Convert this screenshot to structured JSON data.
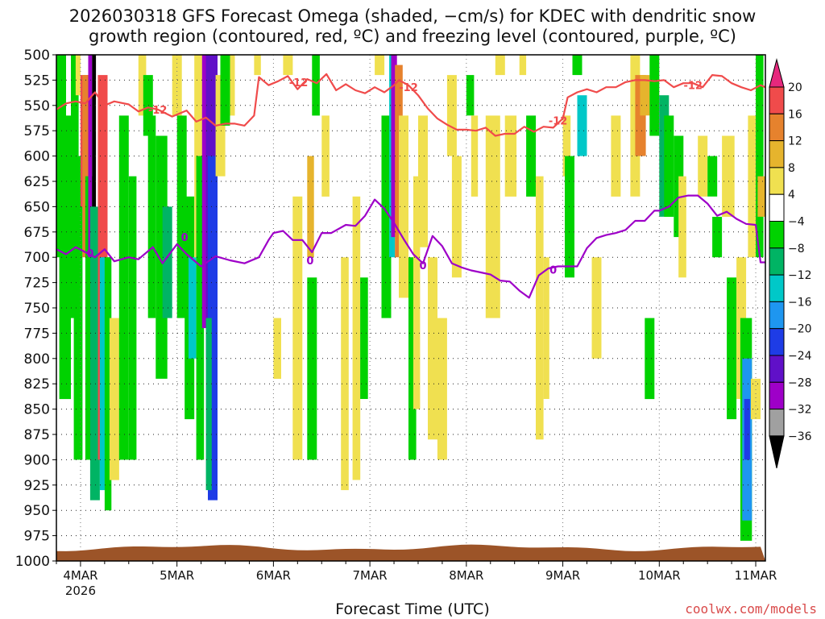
{
  "chart_data": {
    "type": "heatmap",
    "title_lines": [
      "2026030318 GFS Forecast Omega (shaded, −cm/s) for KDEC with dendritic snow",
      "growth region (contoured, red, ºC) and freezing level (contoured, purple, ºC)"
    ],
    "xlabel": "Forecast Time (UTC)",
    "ylabel": "",
    "credit": "coolwx.com/models",
    "x_ticks": [
      "4MAR",
      "5MAR",
      "6MAR",
      "7MAR",
      "8MAR",
      "9MAR",
      "10MAR",
      "11MAR"
    ],
    "x_year_label": "2026",
    "x_range_days": [
      3.75,
      11.1
    ],
    "y_ticks": [
      500,
      525,
      550,
      575,
      600,
      625,
      650,
      675,
      700,
      725,
      750,
      775,
      800,
      825,
      850,
      875,
      900,
      925,
      950,
      975,
      1000
    ],
    "y_range_hpa": [
      500,
      1000
    ],
    "colorbar": {
      "levels": [
        -36,
        -32,
        -28,
        -24,
        -20,
        -16,
        -12,
        -8,
        -4,
        4,
        8,
        12,
        16,
        20
      ],
      "colors": [
        "#000000",
        "#a0a0a0",
        "#9e00c8",
        "#6010c8",
        "#1e3ce6",
        "#1e96f0",
        "#00c8c8",
        "#00b464",
        "#00d200",
        "#ffffff",
        "#f0e050",
        "#e6b42d",
        "#e6822d",
        "#f04b4b",
        "#e6287d"
      ]
    },
    "freezing_level": {
      "name": "0",
      "color": "#9e00c8",
      "points": [
        [
          3.75,
          692
        ],
        [
          3.85,
          697
        ],
        [
          3.95,
          690
        ],
        [
          4.05,
          695
        ],
        [
          4.15,
          700
        ],
        [
          4.25,
          692
        ],
        [
          4.35,
          704
        ],
        [
          4.5,
          700
        ],
        [
          4.6,
          702
        ],
        [
          4.75,
          690
        ],
        [
          4.85,
          706
        ],
        [
          5.0,
          687
        ],
        [
          5.1,
          697
        ],
        [
          5.25,
          709
        ],
        [
          5.4,
          699
        ],
        [
          5.55,
          703
        ],
        [
          5.7,
          706
        ],
        [
          5.85,
          700
        ],
        [
          5.95,
          683
        ],
        [
          6.0,
          676
        ],
        [
          6.1,
          674
        ],
        [
          6.2,
          683
        ],
        [
          6.3,
          683
        ],
        [
          6.4,
          695
        ],
        [
          6.5,
          676
        ],
        [
          6.6,
          676
        ],
        [
          6.75,
          668
        ],
        [
          6.85,
          669
        ],
        [
          6.95,
          659
        ],
        [
          7.05,
          643
        ],
        [
          7.15,
          652
        ],
        [
          7.25,
          666
        ],
        [
          7.35,
          682
        ],
        [
          7.45,
          697
        ],
        [
          7.55,
          706
        ],
        [
          7.65,
          679
        ],
        [
          7.75,
          689
        ],
        [
          7.85,
          706
        ],
        [
          7.95,
          710
        ],
        [
          8.05,
          713
        ],
        [
          8.15,
          715
        ],
        [
          8.25,
          717
        ],
        [
          8.35,
          723
        ],
        [
          8.45,
          724
        ],
        [
          8.55,
          733
        ],
        [
          8.65,
          740
        ],
        [
          8.75,
          718
        ],
        [
          8.85,
          711
        ],
        [
          8.95,
          709
        ],
        [
          9.05,
          709
        ],
        [
          9.15,
          709
        ],
        [
          9.25,
          691
        ],
        [
          9.35,
          681
        ],
        [
          9.45,
          678
        ],
        [
          9.55,
          676
        ],
        [
          9.65,
          673
        ],
        [
          9.75,
          664
        ],
        [
          9.85,
          664
        ],
        [
          9.95,
          654
        ],
        [
          10.0,
          654
        ],
        [
          10.1,
          650
        ],
        [
          10.2,
          641
        ],
        [
          10.3,
          639
        ],
        [
          10.4,
          639
        ],
        [
          10.5,
          647
        ],
        [
          10.6,
          659
        ],
        [
          10.7,
          655
        ],
        [
          10.8,
          662
        ],
        [
          10.9,
          667
        ],
        [
          11.0,
          668
        ],
        [
          11.05,
          705
        ],
        [
          11.1,
          705
        ]
      ],
      "labels": [
        [
          4.1,
          696
        ],
        [
          5.08,
          680
        ],
        [
          6.38,
          703
        ],
        [
          7.55,
          708
        ],
        [
          8.9,
          712
        ]
      ]
    },
    "dgz_minus12": {
      "name": "-12",
      "color": "#f04b4b",
      "points": [
        [
          3.75,
          554
        ],
        [
          3.85,
          548
        ],
        [
          3.95,
          546
        ],
        [
          4.05,
          548
        ],
        [
          4.15,
          537
        ],
        [
          4.25,
          550
        ],
        [
          4.35,
          546
        ],
        [
          4.5,
          549
        ],
        [
          4.6,
          556
        ],
        [
          4.7,
          552
        ],
        [
          4.8,
          554
        ],
        [
          4.95,
          561
        ],
        [
          5.1,
          555
        ],
        [
          5.2,
          566
        ],
        [
          5.3,
          562
        ],
        [
          5.4,
          570
        ],
        [
          5.5,
          568
        ],
        [
          5.6,
          568
        ],
        [
          5.7,
          570
        ],
        [
          5.8,
          560
        ],
        [
          5.85,
          522
        ],
        [
          5.95,
          530
        ],
        [
          6.05,
          526
        ],
        [
          6.15,
          521
        ],
        [
          6.25,
          534
        ],
        [
          6.35,
          524
        ],
        [
          6.45,
          528
        ],
        [
          6.55,
          519
        ],
        [
          6.65,
          535
        ],
        [
          6.75,
          529
        ],
        [
          6.85,
          535
        ],
        [
          6.95,
          538
        ],
        [
          7.05,
          532
        ],
        [
          7.15,
          537
        ],
        [
          7.25,
          530
        ],
        [
          7.3,
          525
        ],
        [
          7.4,
          530
        ],
        [
          7.5,
          540
        ],
        [
          7.6,
          553
        ],
        [
          7.7,
          563
        ],
        [
          7.8,
          569
        ],
        [
          7.9,
          574
        ],
        [
          8.0,
          574
        ],
        [
          8.1,
          575
        ],
        [
          8.2,
          572
        ],
        [
          8.3,
          580
        ],
        [
          8.4,
          578
        ],
        [
          8.5,
          578
        ],
        [
          8.6,
          571
        ],
        [
          8.7,
          576
        ],
        [
          8.8,
          571
        ],
        [
          8.9,
          572
        ],
        [
          9.0,
          563
        ],
        [
          9.05,
          542
        ],
        [
          9.15,
          537
        ],
        [
          9.25,
          534
        ],
        [
          9.35,
          537
        ],
        [
          9.45,
          532
        ],
        [
          9.55,
          532
        ],
        [
          9.65,
          527
        ],
        [
          9.75,
          525
        ],
        [
          9.85,
          525
        ],
        [
          9.95,
          526
        ],
        [
          10.05,
          525
        ],
        [
          10.15,
          532
        ],
        [
          10.25,
          528
        ],
        [
          10.35,
          528
        ],
        [
          10.45,
          532
        ],
        [
          10.55,
          520
        ],
        [
          10.65,
          521
        ],
        [
          10.75,
          528
        ],
        [
          10.85,
          532
        ],
        [
          10.95,
          535
        ],
        [
          11.05,
          530
        ],
        [
          11.1,
          532
        ]
      ],
      "labels": [
        [
          6.26,
          527
        ],
        [
          4.8,
          554
        ],
        [
          7.4,
          532
        ],
        [
          8.95,
          565
        ],
        [
          10.35,
          530
        ]
      ]
    },
    "terrain_surface_hpa": 987
  }
}
